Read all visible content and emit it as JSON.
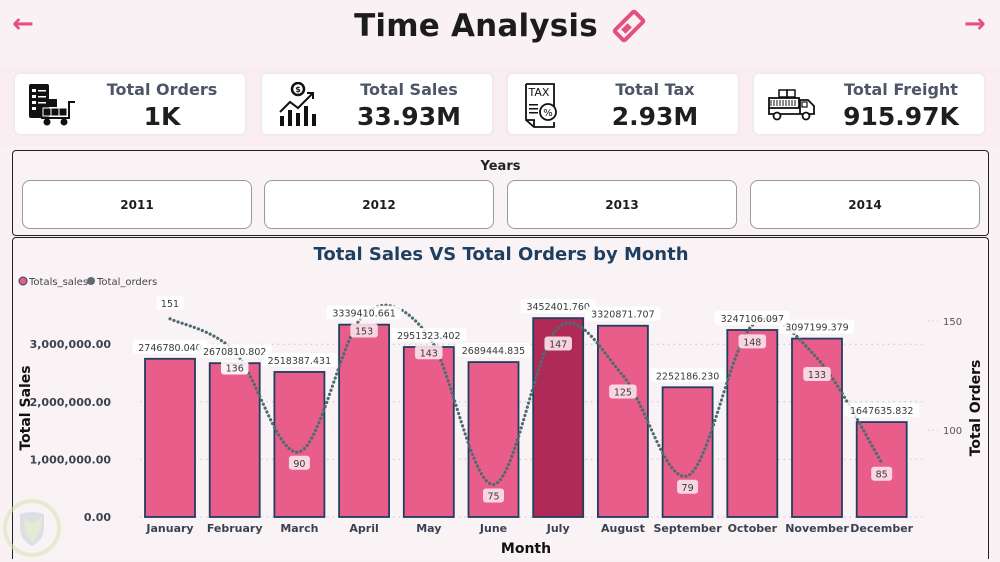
{
  "header": {
    "title": "Time Analysis",
    "title_icon": "ticket-icon",
    "back_icon": "arrow-left-icon",
    "next_icon": "arrow-right-icon",
    "accent_color": "#e3517f"
  },
  "kpis": [
    {
      "label": "Total Orders",
      "value": "1K",
      "icon": "order-cart-icon"
    },
    {
      "label": "Total Sales",
      "value": "33.93M",
      "icon": "sales-growth-icon"
    },
    {
      "label": "Total Tax",
      "value": "2.93M",
      "icon": "tax-document-icon"
    },
    {
      "label": "Total Freight",
      "value": "915.97K",
      "icon": "freight-truck-icon"
    }
  ],
  "years_filter": {
    "title": "Years",
    "options": [
      "2011",
      "2012",
      "2013",
      "2014"
    ]
  },
  "chart_data": {
    "type": "bar",
    "combo": "bar + line (secondary axis)",
    "title": "Total Sales VS Total Orders by Month",
    "xlabel": "Month",
    "ylabel": "Total Sales",
    "y2label": "Total Orders",
    "categories": [
      "January",
      "February",
      "March",
      "April",
      "May",
      "June",
      "July",
      "August",
      "September",
      "October",
      "November",
      "December"
    ],
    "series": [
      {
        "name": "Totals_sales",
        "type": "bar",
        "axis": "left",
        "color": "#e85d8a",
        "highlight_color": "#b02a57",
        "highlight_category": "July",
        "values": [
          2746780.04,
          2670810.802,
          2518387.431,
          3339410.661,
          2951323.402,
          2689444.835,
          3452401.76,
          3320871.707,
          2252186.23,
          3247106.097,
          3097199.379,
          1647635.832
        ],
        "labels": [
          "2746780.040",
          "2670810.802",
          "2518387.431",
          "3339410.661",
          "2951323.402",
          "2689444.835",
          "3452401.760",
          "3320871.707",
          "2252186.230",
          "3247106.097",
          "3097199.379",
          "1647635.832"
        ]
      },
      {
        "name": "Total_orders",
        "type": "line",
        "style": "dotted-smooth",
        "axis": "right",
        "color": "#4f6b72",
        "values": [
          151,
          136,
          90,
          153,
          143,
          75,
          147,
          125,
          79,
          148,
          133,
          85
        ]
      }
    ],
    "yticks": [
      "0.00",
      "1,000,000.00",
      "2,000,000.00",
      "3,000,000.00"
    ],
    "ytick_values": [
      0,
      1000000,
      2000000,
      3000000
    ],
    "y2ticks": [
      "100",
      "150"
    ],
    "y2tick_values": [
      100,
      150
    ],
    "ylim": [
      0,
      3600000
    ],
    "legend": {
      "position": "top-left",
      "entries": [
        {
          "label": "Totals_sales",
          "color": "#e85d8a"
        },
        {
          "label": "Total_orders",
          "color": "#5e6b70"
        }
      ]
    },
    "grid": true
  }
}
